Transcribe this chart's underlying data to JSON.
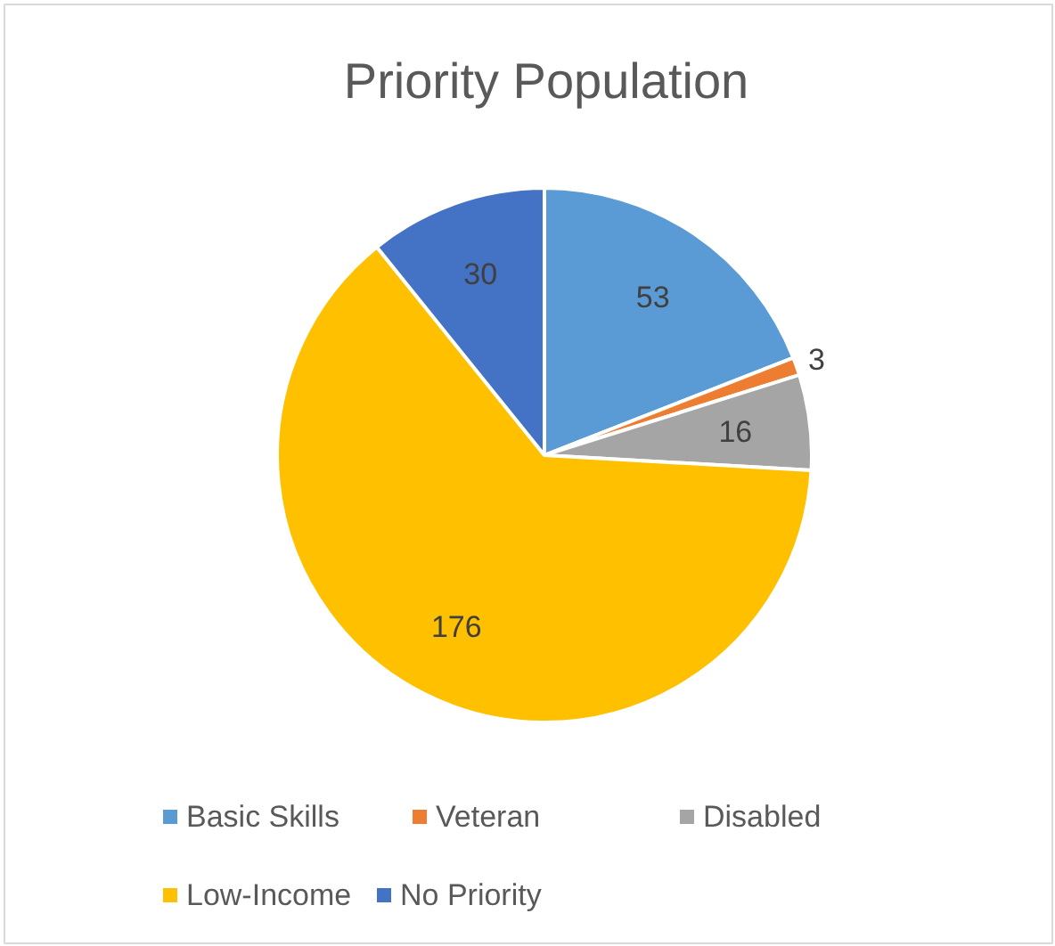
{
  "chart_data": {
    "type": "pie",
    "title": "Priority Population",
    "categories": [
      "Basic Skills",
      "Veteran",
      "Disabled",
      "Low-Income",
      "No Priority"
    ],
    "values": [
      53,
      3,
      16,
      176,
      30
    ],
    "colors": [
      "#5b9bd5",
      "#ed7d31",
      "#a5a5a5",
      "#ffc000",
      "#4472c4"
    ],
    "data_labels": true,
    "legend": "bottom"
  }
}
